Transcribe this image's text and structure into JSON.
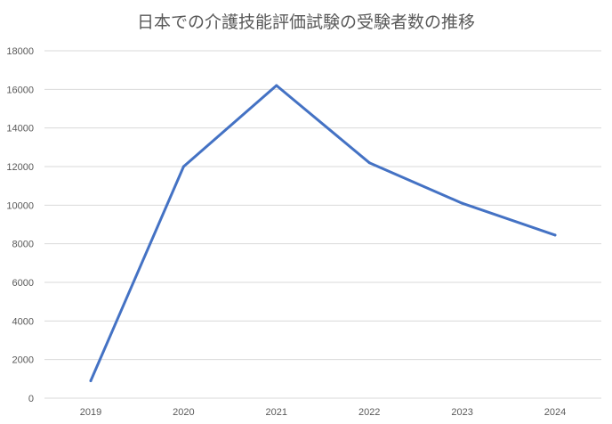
{
  "chart_data": {
    "type": "line",
    "title": "日本での介護技能評価試験の受験者数の推移",
    "xlabel": "",
    "ylabel": "",
    "categories": [
      "2019",
      "2020",
      "2021",
      "2022",
      "2023",
      "2024"
    ],
    "series": [
      {
        "values": [
          900,
          12000,
          16200,
          12200,
          10100,
          8450
        ],
        "color": "#4472C4"
      }
    ],
    "ylim": [
      0,
      18000
    ],
    "yticks": [
      "0",
      "2000",
      "4000",
      "6000",
      "8000",
      "10000",
      "12000",
      "14000",
      "16000",
      "18000"
    ],
    "grid": true,
    "legend": "none",
    "gridline_color": "#d9d9d9",
    "axis_text_color": "#595959"
  }
}
